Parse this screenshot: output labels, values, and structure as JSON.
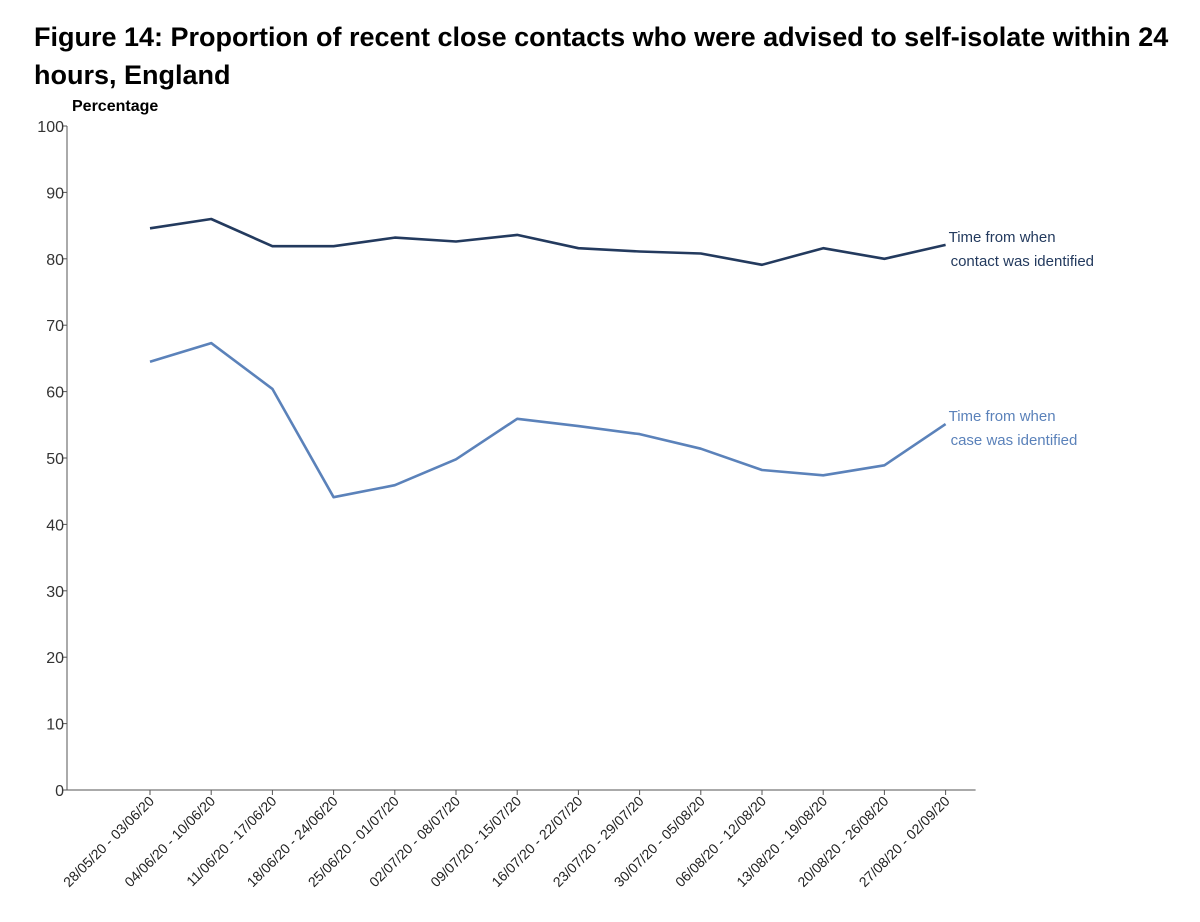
{
  "chart_data": {
    "type": "line",
    "title": "Figure 14: Proportion of recent close contacts who were advised to self-isolate within 24 hours, England",
    "ylabel": "Percentage",
    "xlabel": "",
    "ylim": [
      0,
      100
    ],
    "yticks": [
      0,
      10,
      20,
      30,
      40,
      50,
      60,
      70,
      80,
      90,
      100
    ],
    "grid": false,
    "categories": [
      "28/05/20 - 03/06/20",
      "04/06/20 - 10/06/20",
      "11/06/20 - 17/06/20",
      "18/06/20 - 24/06/20",
      "25/06/20 - 01/07/20",
      "02/07/20 - 08/07/20",
      "09/07/20 - 15/07/20",
      "16/07/20 - 22/07/20",
      "23/07/20 - 29/07/20",
      "30/07/20 - 05/08/20",
      "06/08/20 - 12/08/20",
      "13/08/20 - 19/08/20",
      "20/08/20 - 26/08/20",
      "27/08/20 - 02/09/20"
    ],
    "series": [
      {
        "name": "Time from when contact was identified",
        "label_lines": [
          "Time from when",
          "contact was identified"
        ],
        "color": "#233a5e",
        "values": [
          84.6,
          86.0,
          81.9,
          81.9,
          83.2,
          82.6,
          83.6,
          81.6,
          81.1,
          80.8,
          79.1,
          81.6,
          80.0,
          82.1
        ]
      },
      {
        "name": "Time from when case was identified",
        "label_lines": [
          "Time from when",
          "case was identified"
        ],
        "color": "#5b82ba",
        "values": [
          64.5,
          67.3,
          60.4,
          44.1,
          45.9,
          49.8,
          55.9,
          54.8,
          53.6,
          51.4,
          48.2,
          47.4,
          48.9,
          55.1
        ]
      }
    ]
  }
}
